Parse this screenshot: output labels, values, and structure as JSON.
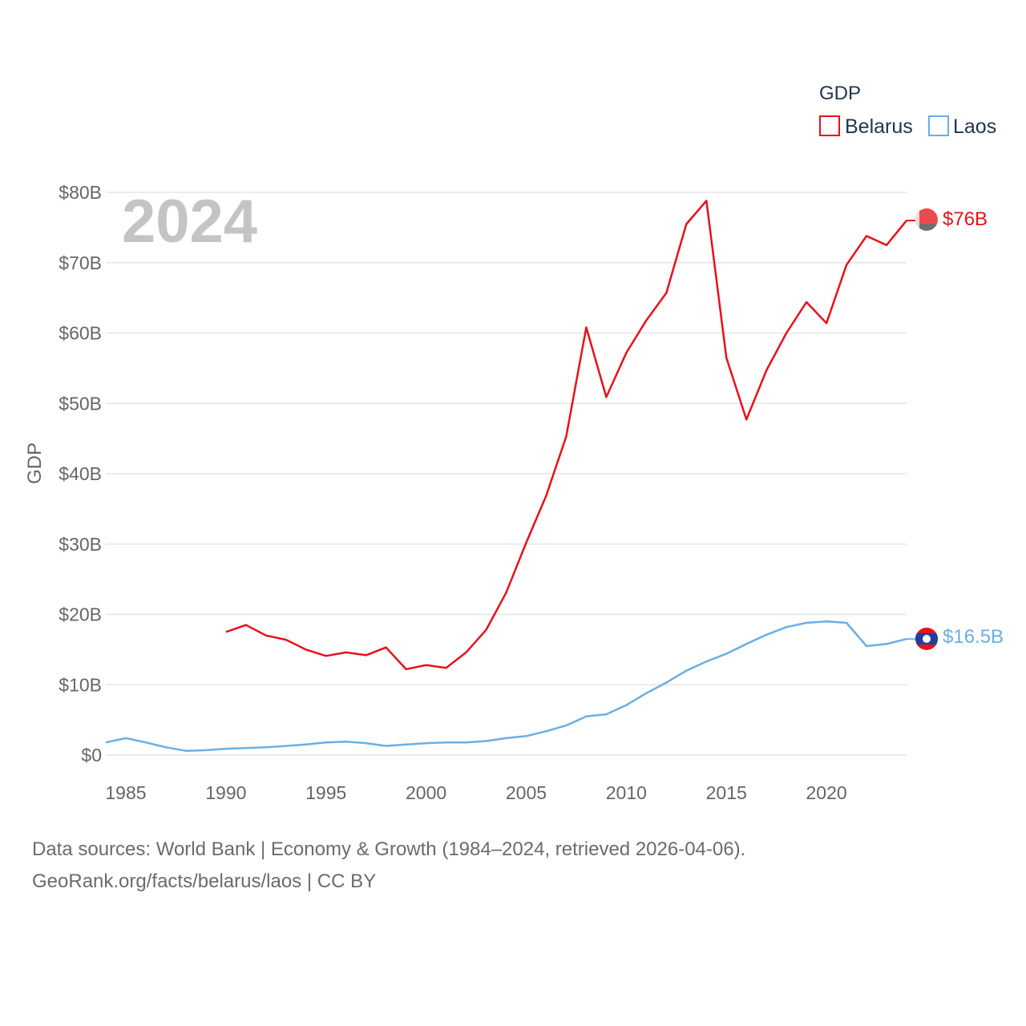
{
  "chart_data": {
    "type": "line",
    "title": "",
    "overlay_year": "2024",
    "ylabel": "GDP",
    "xlabel": "",
    "xlim": [
      1984,
      2024
    ],
    "ylim": [
      0,
      80
    ],
    "y_unit": "billions USD",
    "y_ticks": [
      0,
      10,
      20,
      30,
      40,
      50,
      60,
      70,
      80
    ],
    "y_tick_labels": [
      "$0",
      "$10B",
      "$20B",
      "$30B",
      "$40B",
      "$50B",
      "$60B",
      "$70B",
      "$80B"
    ],
    "x_ticks": [
      1985,
      1990,
      1995,
      2000,
      2005,
      2010,
      2015,
      2020
    ],
    "x_tick_labels": [
      "1985",
      "1990",
      "1995",
      "2000",
      "2005",
      "2010",
      "2015",
      "2020"
    ],
    "legend": {
      "title": "GDP",
      "position": "top-right"
    },
    "grid": true,
    "series": [
      {
        "name": "Belarus",
        "color": "#e8101b",
        "end_label": "$76B",
        "x": [
          1990,
          1991,
          1992,
          1993,
          1994,
          1995,
          1996,
          1997,
          1998,
          1999,
          2000,
          2001,
          2002,
          2003,
          2004,
          2005,
          2006,
          2007,
          2008,
          2009,
          2010,
          2011,
          2012,
          2013,
          2014,
          2015,
          2016,
          2017,
          2018,
          2019,
          2020,
          2021,
          2022,
          2023,
          2024
        ],
        "values": [
          17.5,
          18.5,
          17.0,
          16.4,
          15.0,
          14.1,
          14.6,
          14.2,
          15.3,
          12.2,
          12.8,
          12.4,
          14.6,
          17.8,
          23.1,
          30.2,
          36.9,
          45.3,
          60.8,
          50.9,
          57.2,
          61.8,
          65.7,
          75.5,
          78.8,
          56.5,
          47.7,
          54.7,
          60.0,
          64.4,
          61.4,
          69.7,
          73.8,
          72.5,
          76.0
        ]
      },
      {
        "name": "Laos",
        "color": "#6aaee6",
        "end_label": "$16.5B",
        "x": [
          1984,
          1985,
          1986,
          1987,
          1988,
          1989,
          1990,
          1991,
          1992,
          1993,
          1994,
          1995,
          1996,
          1997,
          1998,
          1999,
          2000,
          2001,
          2002,
          2003,
          2004,
          2005,
          2006,
          2007,
          2008,
          2009,
          2010,
          2011,
          2012,
          2013,
          2014,
          2015,
          2016,
          2017,
          2018,
          2019,
          2020,
          2021,
          2022,
          2023,
          2024
        ],
        "values": [
          1.8,
          2.4,
          1.8,
          1.1,
          0.6,
          0.7,
          0.9,
          1.0,
          1.1,
          1.3,
          1.5,
          1.8,
          1.9,
          1.7,
          1.3,
          1.5,
          1.7,
          1.8,
          1.8,
          2.0,
          2.4,
          2.7,
          3.4,
          4.2,
          5.5,
          5.8,
          7.1,
          8.8,
          10.3,
          12.0,
          13.3,
          14.4,
          15.8,
          17.1,
          18.2,
          18.8,
          19.0,
          18.8,
          15.5,
          15.8,
          16.5
        ]
      }
    ]
  },
  "footer": {
    "line1": "Data sources: World Bank | Economy & Growth (1984–2024, retrieved 2026-04-06).",
    "line2": "GeoRank.org/facts/belarus/laos | CC BY"
  },
  "flags": {
    "belarus": "belarus-flag-icon",
    "laos": "laos-flag-icon"
  }
}
